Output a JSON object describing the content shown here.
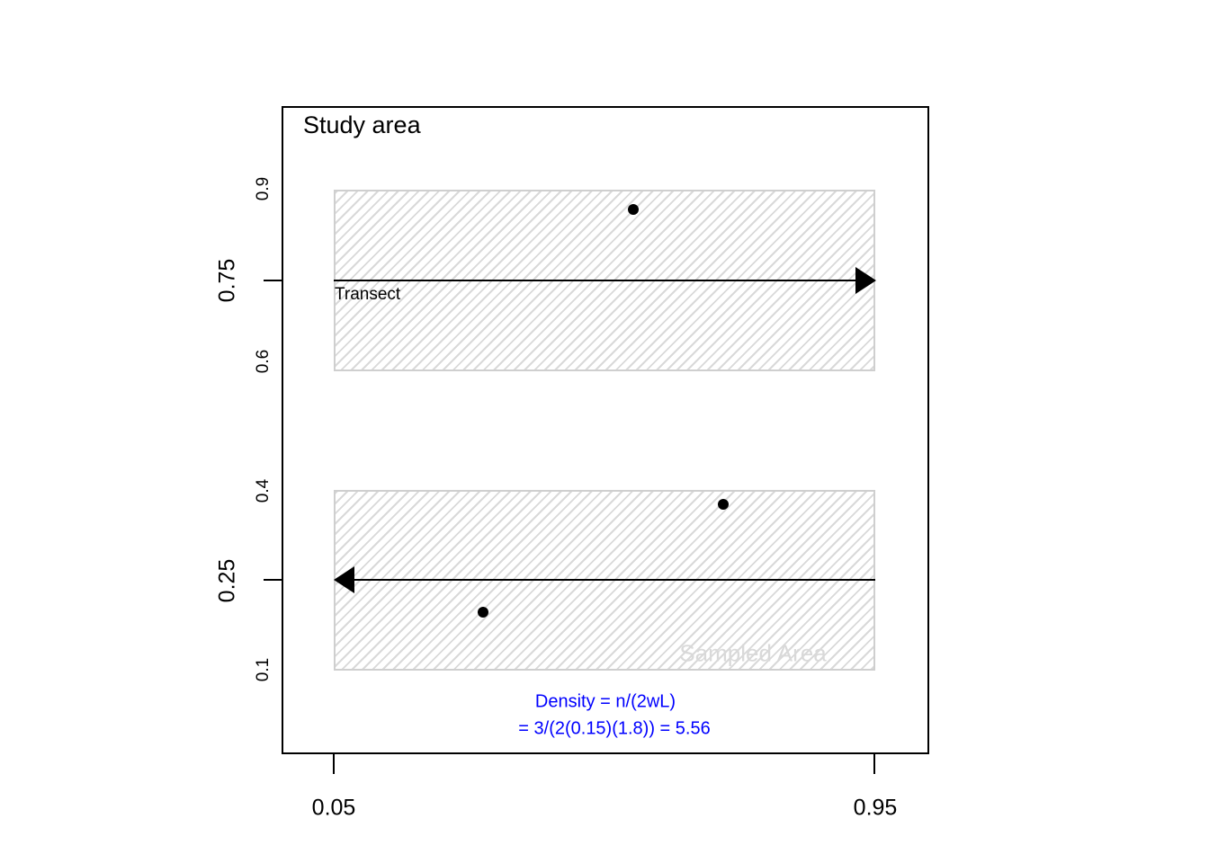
{
  "figure": {
    "title": "Study area"
  },
  "chart_data": {
    "type": "scatter",
    "title": "Study area",
    "description_elements": {
      "study_area_box": "outer rectangle framing the plot",
      "strips": "two hatched rectangles of half-width w = 0.15 around each transect line"
    },
    "x_tick_labels": [
      "0.05",
      "0.95"
    ],
    "x_tick_values": [
      0.05,
      0.95
    ],
    "y_major_tick_labels": [
      "0.75",
      "0.25"
    ],
    "y_major_tick_values": [
      0.75,
      0.25
    ],
    "y_minor_labels": [
      "0.9",
      "0.6",
      "0.4",
      "0.1"
    ],
    "y_minor_values": [
      0.9,
      0.6,
      0.4,
      0.1
    ],
    "transects": [
      {
        "y": 0.75,
        "x_start": 0.05,
        "x_end": 0.95,
        "arrow_direction": "right",
        "strip_y_range": [
          0.6,
          0.9
        ],
        "label": "Transect"
      },
      {
        "y": 0.25,
        "x_start": 0.95,
        "x_end": 0.05,
        "arrow_direction": "left",
        "strip_y_range": [
          0.1,
          0.4
        ],
        "label": null
      }
    ],
    "points": [
      {
        "x": 0.55,
        "y": 0.87
      },
      {
        "x": 0.7,
        "y": 0.37
      },
      {
        "x": 0.3,
        "y": 0.2
      }
    ],
    "n_detected": 3,
    "annotation_lines": [
      "Density = n/(2wL)",
      "= 3/(2(0.15)(1.8)) = 5.56"
    ],
    "sampled_area_watermark": "Sampled Area",
    "legend_position": "none",
    "grid": false
  },
  "labels": {
    "title": "Study area",
    "transect": "Transect",
    "sampled_area": "Sampled Area",
    "density_line1": "Density = n/(2wL)",
    "density_line2": "= 3/(2(0.15)(1.8)) = 5.56",
    "x_tick_left": "0.05",
    "x_tick_right": "0.95",
    "y_major_top": "0.75",
    "y_major_bottom": "0.25",
    "y_minor_09": "0.9",
    "y_minor_06": "0.6",
    "y_minor_04": "0.4",
    "y_minor_01": "0.1"
  },
  "colors": {
    "frame": "#000000",
    "hatch_gray": "#d9d9d9",
    "hatch_border": "#cfcfcf",
    "annotation_blue": "#0000ff",
    "watermark_gray": "#d9d9d9",
    "point": "#000000"
  }
}
